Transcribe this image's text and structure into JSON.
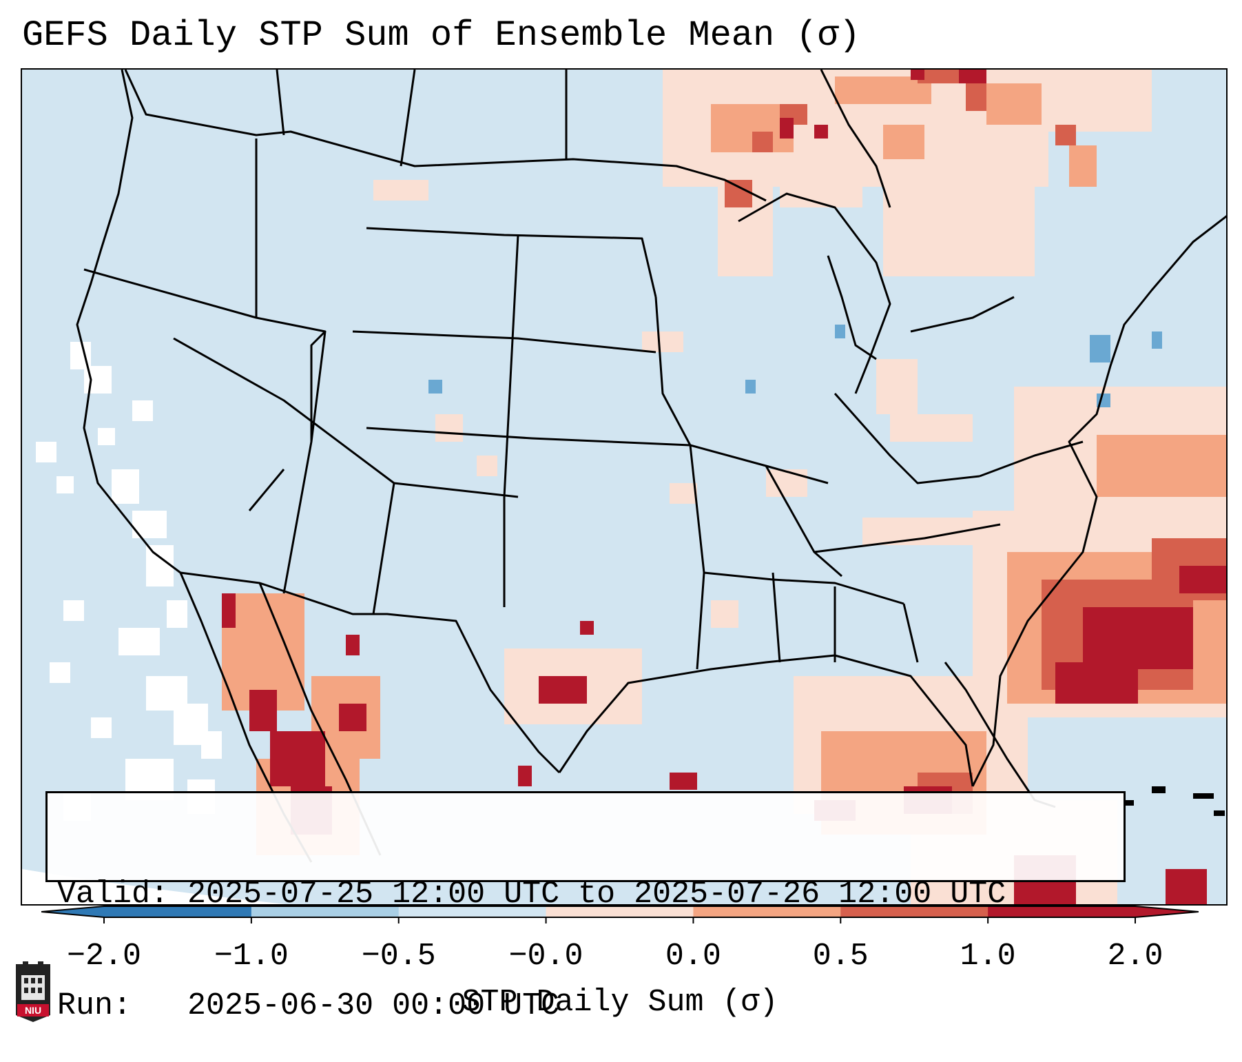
{
  "title": "GEFS Daily STP Sum of Ensemble Mean (σ)",
  "info": {
    "valid_line": "Valid: 2025-07-25 12:00 UTC to 2025-07-26 12:00 UTC",
    "run_line": "Run:   2025-06-30 00:00 UTC"
  },
  "colorbar": {
    "label": "STP Daily Sum (σ)",
    "ticks": [
      "−2.0",
      "−1.0",
      "−0.5",
      "−0.0",
      "0.0",
      "0.5",
      "1.0",
      "2.0"
    ],
    "colors": [
      "#2f79b5",
      "#6aa8d2",
      "#a9cfe5",
      "#d2e5f1",
      "#fae0d4",
      "#f4a582",
      "#d6604d",
      "#b2182b"
    ]
  },
  "map": {
    "region": "Contiguous United States",
    "background_color": "#d2e5f1",
    "border_color": "#000000"
  },
  "logo": {
    "text": "NIU",
    "color": "#c8102e"
  }
}
